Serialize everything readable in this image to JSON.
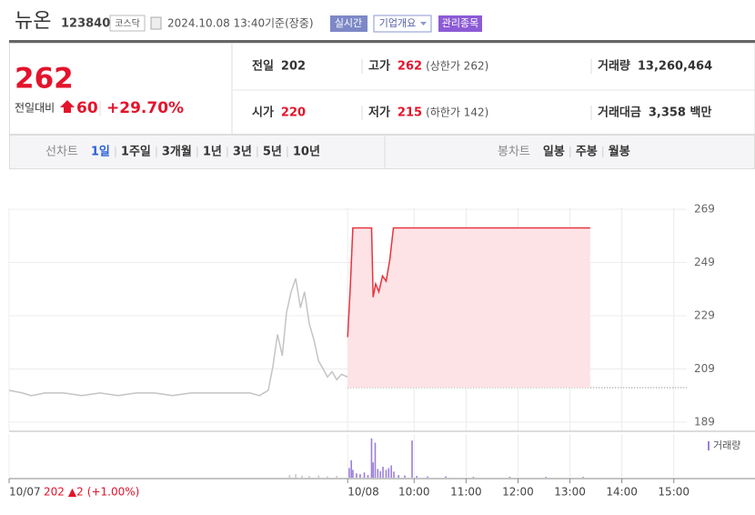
{
  "header": {
    "name": "뉴온",
    "code": "123840",
    "market": "코스닥",
    "datetime": "2024.10.08 13:40",
    "status": "기준(장중)",
    "buttons": [
      "실시간",
      "기업개요",
      "관리종목"
    ]
  },
  "price": {
    "current": "262",
    "change_label": "전일대비",
    "change": "60",
    "rate": "+29.70%"
  },
  "stats": {
    "rows": [
      [
        {
          "label": "전일",
          "value": "202"
        },
        {
          "label": "고가",
          "value": "262",
          "extra": "(상한가 262)"
        },
        {
          "label": "거래량",
          "value": "13,260,464"
        }
      ],
      [
        {
          "label": "시가",
          "value": "220"
        },
        {
          "label": "저가",
          "value": "215",
          "extra": "(하한가 142)"
        },
        {
          "label": "거래대금",
          "value": "3,358 백만"
        }
      ]
    ]
  },
  "tabs": {
    "line_label": "선차트",
    "line_periods": [
      "1일",
      "1주일",
      "3개월",
      "1년",
      "3년",
      "5년",
      "10년"
    ],
    "candle_label": "봉차트",
    "candle_periods": [
      "일봉",
      "주봉",
      "월봉"
    ]
  },
  "footer": {
    "close": "202",
    "change": "▲2",
    "rate": "(+1.00%)"
  },
  "chart_data": {
    "type": "line",
    "xlim": [
      2.2,
      15.25
    ],
    "xticks": [
      {
        "value": 2.2,
        "label": "10/07"
      },
      {
        "value": 8.72,
        "label": "10/08"
      },
      {
        "value": 10,
        "label": "10:00"
      },
      {
        "value": 11,
        "label": "11:00"
      },
      {
        "value": 12,
        "label": "12:00"
      },
      {
        "value": 13,
        "label": "13:00"
      },
      {
        "value": 14,
        "label": "14:00"
      },
      {
        "value": 15,
        "label": "15:00"
      }
    ],
    "ylim": [
      185.6,
      269.7
    ],
    "yticks": [
      189,
      209,
      229,
      249,
      269
    ],
    "grid": true,
    "baseline": 202,
    "series": [
      {
        "color": "#c4c4c4",
        "x": [
          2.2,
          2.46,
          2.63,
          2.89,
          3.25,
          3.6,
          3.95,
          4.3,
          4.65,
          5.0,
          5.35,
          5.7,
          6.05,
          6.4,
          6.84,
          7.02,
          7.19,
          7.28,
          7.37,
          7.46,
          7.54,
          7.63,
          7.72,
          7.81,
          7.89,
          7.98,
          8.07,
          8.16,
          8.25,
          8.33,
          8.42,
          8.51,
          8.6,
          8.72
        ],
        "values": [
          201,
          200,
          199,
          200,
          200,
          199,
          200,
          199,
          200,
          200,
          199,
          200,
          200,
          200,
          200,
          199,
          201,
          210,
          222,
          214,
          230,
          238,
          243,
          232,
          238,
          226,
          220,
          212,
          209,
          206,
          208,
          205,
          207,
          206
        ]
      },
      {
        "color": "#e8343f",
        "fill": "#fde3e5",
        "x": [
          8.72,
          8.77,
          8.82,
          9.18,
          9.21,
          9.26,
          9.32,
          9.39,
          9.46,
          9.53,
          9.6,
          13.39
        ],
        "values": [
          221,
          240,
          262,
          262,
          236,
          241,
          238,
          244,
          242,
          250,
          262,
          262
        ]
      }
    ],
    "volume_ylim": [
      0,
      100
    ],
    "volume": [
      {
        "color": "#c8c8c8",
        "x": [
          7.6,
          7.72,
          7.84,
          7.98,
          8.16,
          8.33,
          8.51
        ],
        "values": [
          6,
          8,
          5,
          4,
          5,
          3,
          4
        ]
      },
      {
        "name": "거래량",
        "color": "#9b7fd8",
        "x": [
          8.75,
          8.79,
          8.82,
          8.89,
          8.96,
          9.04,
          9.11,
          9.18,
          9.21,
          9.25,
          9.3,
          9.35,
          9.4,
          9.46,
          9.51,
          9.56,
          9.61,
          9.7,
          9.82,
          9.96,
          10.05,
          10.26,
          10.61,
          11.14,
          11.84,
          12.54,
          13.25
        ],
        "values": [
          22,
          40,
          18,
          10,
          8,
          12,
          6,
          90,
          35,
          80,
          20,
          15,
          25,
          18,
          22,
          28,
          14,
          6,
          5,
          85,
          4,
          3,
          3,
          2,
          2,
          2,
          2
        ]
      }
    ]
  }
}
